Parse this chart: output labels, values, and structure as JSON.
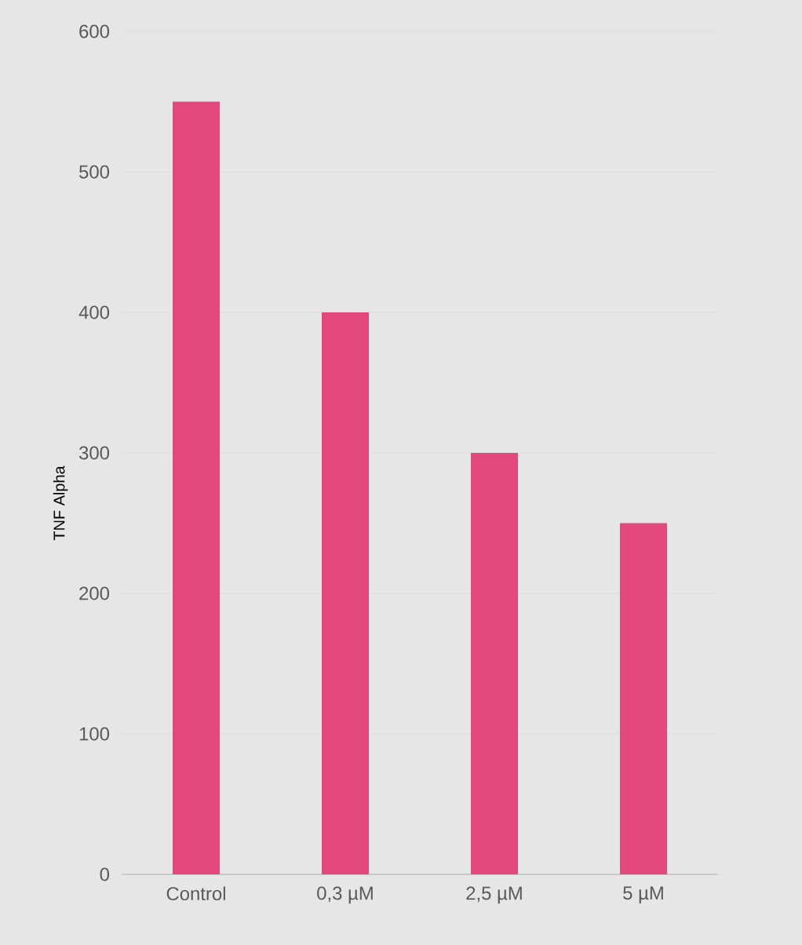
{
  "chart_data": {
    "type": "bar",
    "ylabel": "TNF Alpha",
    "categories": [
      "Control",
      "0,3 µM",
      "2,5 µM",
      "5 µM"
    ],
    "values": [
      550,
      400,
      300,
      250
    ],
    "color": "#e2487c",
    "ylim": [
      0,
      600
    ],
    "yticks": [
      0,
      100,
      200,
      300,
      400,
      500,
      600
    ],
    "grid": "y"
  }
}
